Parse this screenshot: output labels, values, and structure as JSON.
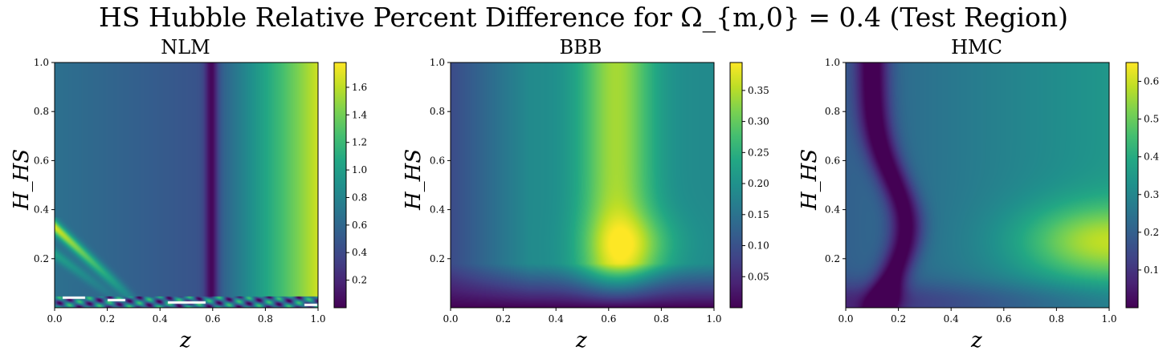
{
  "suptitle": "HS Hubble Relative Percent Difference for Ω_{m,0} = 0.4 (Test Region)",
  "chart_data": [
    {
      "type": "heatmap",
      "title": "NLM",
      "xlabel": "z",
      "ylabel": "H_HS",
      "xlim": [
        0,
        1
      ],
      "ylim": [
        0,
        1
      ],
      "xticks": [
        "0.0",
        "0.2",
        "0.4",
        "0.6",
        "0.8",
        "1.0"
      ],
      "yticks": [
        "0.2",
        "0.4",
        "0.6",
        "0.8",
        "1.0"
      ],
      "colorbar": {
        "range": [
          0.0,
          1.78
        ],
        "ticks": [
          "0.2",
          "0.4",
          "0.6",
          "0.8",
          "1.0",
          "1.2",
          "1.4",
          "1.6"
        ]
      },
      "colormap": "viridis",
      "features": [
        "minimum band near z=0.6",
        "maximum near z=1.0 (~1.7)",
        "diagonal high streak at low z, H_HS < 0.35 (~1.7)",
        "noisy artifacts near H_HS ≈ 0.03"
      ]
    },
    {
      "type": "heatmap",
      "title": "BBB",
      "xlabel": "z",
      "ylabel": "H_HS",
      "xlim": [
        0,
        1
      ],
      "ylim": [
        0,
        1
      ],
      "xticks": [
        "0.0",
        "0.2",
        "0.4",
        "0.6",
        "0.8",
        "1.0"
      ],
      "yticks": [
        "0.2",
        "0.4",
        "0.6",
        "0.8",
        "1.0"
      ],
      "colorbar": {
        "range": [
          0.0,
          0.395
        ],
        "ticks": [
          "0.05",
          "0.10",
          "0.15",
          "0.20",
          "0.25",
          "0.30",
          "0.35"
        ]
      },
      "colormap": "viridis",
      "features": [
        "vertical maximum band near z=0.6 (~0.38)",
        "hot spot near z=0.7, H_HS=0.25",
        "low values at z=0 and H_HS→0"
      ]
    },
    {
      "type": "heatmap",
      "title": "HMC",
      "xlabel": "z",
      "ylabel": "H_HS",
      "xlim": [
        0,
        1
      ],
      "ylim": [
        0,
        1
      ],
      "xticks": [
        "0.0",
        "0.2",
        "0.4",
        "0.6",
        "0.8",
        "1.0"
      ],
      "yticks": [
        "0.2",
        "0.4",
        "0.6",
        "0.8",
        "1.0"
      ],
      "colorbar": {
        "range": [
          0.0,
          0.65
        ],
        "ticks": [
          "0.1",
          "0.2",
          "0.3",
          "0.4",
          "0.5",
          "0.6"
        ]
      },
      "colormap": "viridis",
      "features": [
        "curved minimum band from z=0.1 (top) to z=0.2 (H_HS≈0.3)",
        "maximum near z=0.95, H_HS=0.27 (~0.63)"
      ]
    }
  ]
}
